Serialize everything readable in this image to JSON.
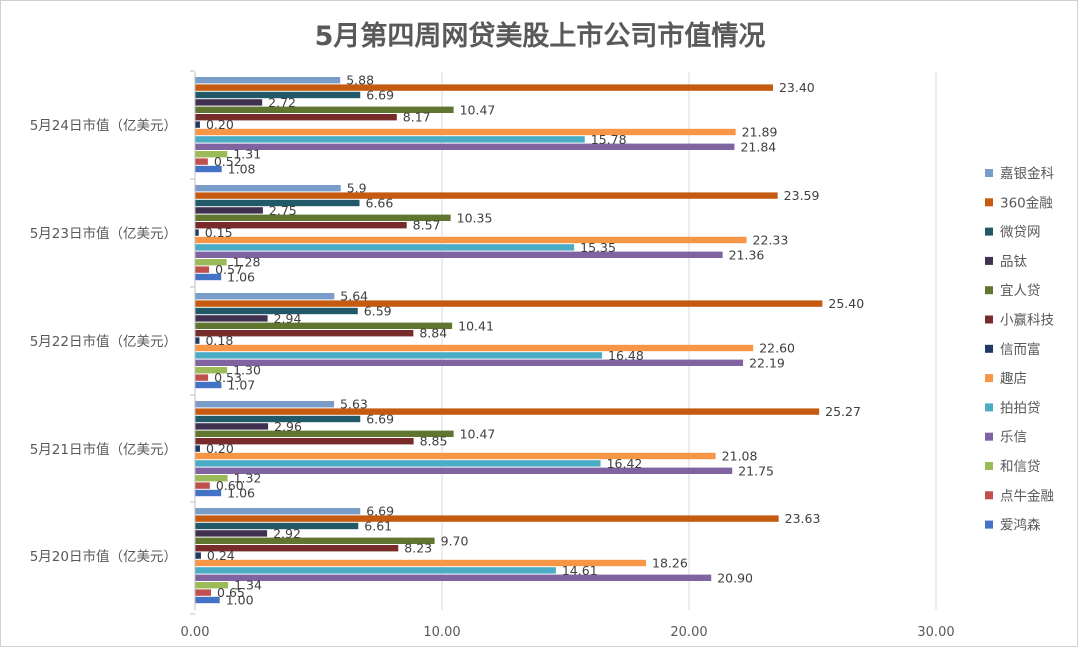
{
  "chart_data": {
    "type": "bar",
    "orientation": "horizontal",
    "title": "5月第四周网贷美股上市公司市值情况",
    "xlabel": "",
    "ylabel": "",
    "xlim": [
      0,
      30
    ],
    "xticks": [
      "0.00",
      "10.00",
      "20.00",
      "30.00"
    ],
    "grid": true,
    "legend_position": "right",
    "categories": [
      "5月20日市值（亿美元）",
      "5月21日市值（亿美元）",
      "5月22日市值（亿美元）",
      "5月23日市值（亿美元）",
      "5月24日市值（亿美元）"
    ],
    "series": [
      {
        "name": "爱鸿森",
        "color": "#4472c4",
        "values": [
          1.0,
          1.06,
          1.07,
          1.06,
          1.08
        ],
        "labels": [
          "1.00",
          "1.06",
          "1.07",
          "1.06",
          "1.08"
        ]
      },
      {
        "name": "点牛金融",
        "color": "#c0504d",
        "values": [
          0.65,
          0.6,
          0.53,
          0.57,
          0.52
        ],
        "labels": [
          "0.65",
          "0.60",
          "0.53",
          "0.57",
          "0.52"
        ]
      },
      {
        "name": "和信贷",
        "color": "#9bbb59",
        "values": [
          1.34,
          1.32,
          1.3,
          1.28,
          1.31
        ],
        "labels": [
          "1.34",
          "1.32",
          "1.30",
          "1.28",
          "1.31"
        ]
      },
      {
        "name": "乐信",
        "color": "#8064a2",
        "values": [
          20.9,
          21.75,
          22.19,
          21.36,
          21.84
        ],
        "labels": [
          "20.90",
          "21.75",
          "22.19",
          "21.36",
          "21.84"
        ]
      },
      {
        "name": "拍拍贷",
        "color": "#4bacc6",
        "values": [
          14.61,
          16.42,
          16.48,
          15.35,
          15.78
        ],
        "labels": [
          "14.61",
          "16.42",
          "16.48",
          "15.35",
          "15.78"
        ]
      },
      {
        "name": "趣店",
        "color": "#f79646",
        "values": [
          18.26,
          21.08,
          22.6,
          22.33,
          21.89
        ],
        "labels": [
          "18.26",
          "21.08",
          "22.60",
          "22.33",
          "21.89"
        ]
      },
      {
        "name": "信而富",
        "color": "#1f3864",
        "values": [
          0.24,
          0.2,
          0.18,
          0.15,
          0.2
        ],
        "labels": [
          "0.24",
          "0.20",
          "0.18",
          "0.15",
          "0.20"
        ]
      },
      {
        "name": "小赢科技",
        "color": "#772c2a",
        "values": [
          8.23,
          8.85,
          8.84,
          8.57,
          8.17
        ],
        "labels": [
          "8.23",
          "8.85",
          "8.84",
          "8.57",
          "8.17"
        ]
      },
      {
        "name": "宜人贷",
        "color": "#5f7530",
        "values": [
          9.7,
          10.47,
          10.41,
          10.35,
          10.47
        ],
        "labels": [
          "9.70",
          "10.47",
          "10.41",
          "10.35",
          "10.47"
        ]
      },
      {
        "name": "品钛",
        "color": "#403151",
        "values": [
          2.92,
          2.96,
          2.94,
          2.75,
          2.72
        ],
        "labels": [
          "2.92",
          "2.96",
          "2.94",
          "2.75",
          "2.72"
        ]
      },
      {
        "name": "微贷网",
        "color": "#215968",
        "values": [
          6.61,
          6.69,
          6.59,
          6.66,
          6.69
        ],
        "labels": [
          "6.61",
          "6.69",
          "6.59",
          "6.66",
          "6.69"
        ]
      },
      {
        "name": "360金融",
        "color": "#c55a11",
        "values": [
          23.63,
          25.27,
          25.4,
          23.59,
          23.4
        ],
        "labels": [
          "23.63",
          "25.27",
          "25.40",
          "23.59",
          "23.40"
        ]
      },
      {
        "name": "嘉银金科",
        "color": "#7a9cc8",
        "values": [
          6.69,
          5.63,
          5.64,
          5.9,
          5.88
        ],
        "labels": [
          "6.69",
          "5.63",
          "5.64",
          "5.9",
          "5.88"
        ]
      }
    ]
  }
}
